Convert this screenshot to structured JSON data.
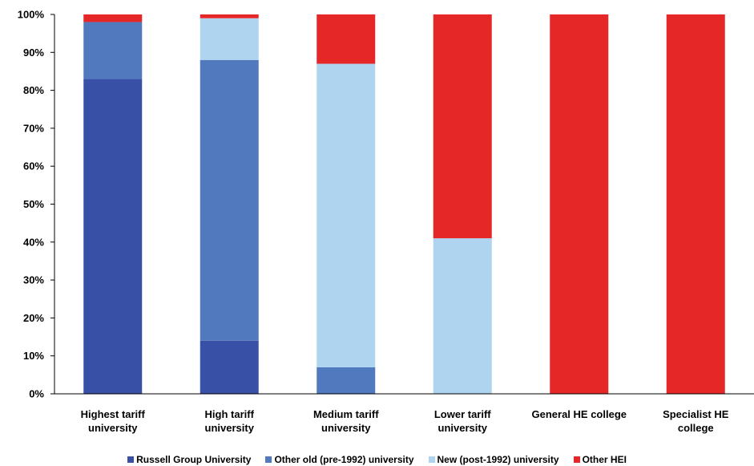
{
  "chart_data": {
    "type": "bar",
    "stacked": true,
    "categories": [
      [
        "Highest tariff",
        "university"
      ],
      [
        "High tariff",
        "university"
      ],
      [
        "Medium tariff",
        "university"
      ],
      [
        "Lower tariff",
        "university"
      ],
      [
        "General HE college"
      ],
      [
        "Specialist HE",
        "college"
      ]
    ],
    "series": [
      {
        "name": "Russell Group University",
        "color": "#3850a6",
        "values": [
          83,
          14,
          0,
          0,
          0,
          0
        ]
      },
      {
        "name": "Other old (pre-1992) university",
        "color": "#5079be",
        "values": [
          15,
          74,
          7,
          0,
          0,
          0
        ]
      },
      {
        "name": "New (post-1992) university",
        "color": "#afd4f0",
        "values": [
          0,
          11,
          80,
          41,
          0,
          0
        ]
      },
      {
        "name": "Other HEI",
        "color": "#e62728",
        "values": [
          2,
          1,
          13,
          59,
          100,
          100
        ]
      }
    ],
    "ylim": [
      0,
      100
    ],
    "yticks": [
      "0%",
      "10%",
      "20%",
      "30%",
      "40%",
      "50%",
      "60%",
      "70%",
      "80%",
      "90%",
      "100%"
    ],
    "legend_position": "bottom",
    "grid": false
  }
}
